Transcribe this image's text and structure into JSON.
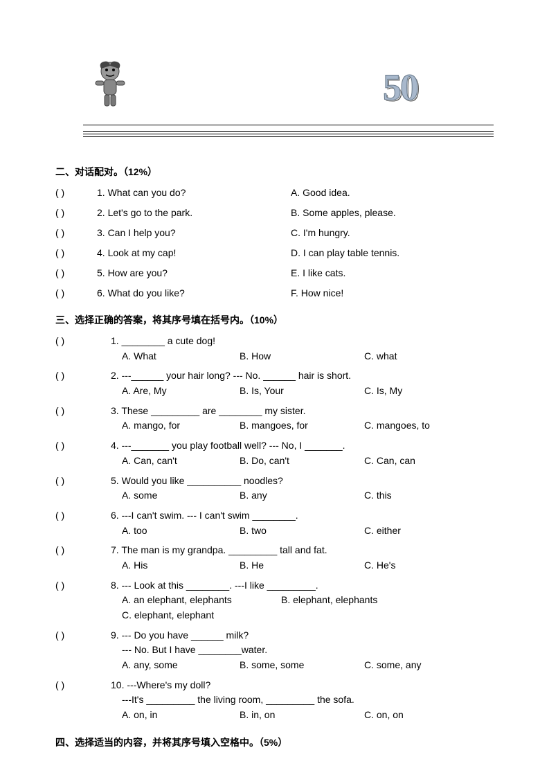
{
  "header": {
    "number": "50"
  },
  "section2": {
    "title": "二、对话配对。（12%）",
    "items": [
      {
        "paren": "(          )",
        "num": "1.",
        "left": "What can you do?",
        "letter": "A.",
        "right": "Good idea."
      },
      {
        "paren": "(          )",
        "num": "2.",
        "left": "Let's go to the park.",
        "letter": "B.",
        "right": "Some apples, please."
      },
      {
        "paren": "(          )",
        "num": "3.",
        "left": "Can I help you?",
        "letter": "C.",
        "right": "I'm hungry."
      },
      {
        "paren": "(          )",
        "num": "4.",
        "left": "Look at my cap!",
        "letter": "D.",
        "right": "I can play table tennis."
      },
      {
        "paren": "(          )",
        "num": "5.",
        "left": "How are you?",
        "letter": "E.",
        "right": "I like cats."
      },
      {
        "paren": "(          )",
        "num": "6.",
        "left": "What do you like?",
        "letter": "F.",
        "right": "How nice!"
      }
    ]
  },
  "section3": {
    "title": "三、选择正确的答案，将其序号填在括号内。（10%）",
    "questions": [
      {
        "paren": "(             )",
        "num": "1.",
        "stem": "________ a cute dog!",
        "opts": {
          "a": "A. What",
          "b": "B. How",
          "c": "C. what"
        }
      },
      {
        "paren": "(             )",
        "num": "2.",
        "stem": "---______ your hair long?         --- No. ______ hair is short.",
        "opts": {
          "a": "A. Are, My",
          "b": "B. Is, Your",
          "c": "C. Is, My"
        }
      },
      {
        "paren": "(             )",
        "num": "3.",
        "stem": "These _________ are ________ my sister.",
        "opts": {
          "a": "A. mango, for",
          "b": "B. mangoes, for",
          "c": "C. mangoes, to"
        }
      },
      {
        "paren": "(             )",
        "num": "4.",
        "stem": "---_______ you play football well?    --- No, I _______.",
        "opts": {
          "a": "A. Can, can't",
          "b": "B. Do, can't",
          "c": "C. Can, can"
        }
      },
      {
        "paren": "(             )",
        "num": "5.",
        "stem": "Would you like __________ noodles?",
        "opts": {
          "a": "A. some",
          "b": "B. any",
          "c": "C. this"
        }
      },
      {
        "paren": "(             )",
        "num": "6.",
        "stem": "---I can't swim.    --- I can't swim ________.",
        "opts": {
          "a": "A. too",
          "b": "B. two",
          "c": "C. either"
        }
      },
      {
        "paren": "(             )",
        "num": "7.",
        "stem": "The man is my grandpa.     _________ tall and fat.",
        "opts": {
          "a": "A. His",
          "b": "B. He",
          "c": "C. He's"
        }
      },
      {
        "paren": "(             )",
        "num": "8.",
        "stem": "--- Look at this ________.     ---I like _________.",
        "opts8": {
          "a": "A. an elephant, elephants",
          "b": "B. elephant, elephants",
          "c": "C. elephant, elephant"
        }
      },
      {
        "paren": "(             )",
        "num": "9.",
        "stem": "--- Do you have ______ milk?",
        "sub": "--- No. But I have ________water.",
        "opts": {
          "a": "A. any, some",
          "b": "B. some, some",
          "c": "C. some, any"
        }
      },
      {
        "paren": "(             )",
        "num": "10.",
        "stem": "---Where's my doll?",
        "sub": "---It's  _________ the living room, _________ the sofa.",
        "opts": {
          "a": "A. on, in",
          "b": "B. in, on",
          "c": "C. on, on"
        }
      }
    ]
  },
  "section4": {
    "title": "四、选择适当的内容，并将其序号填入空格中。（5%）"
  }
}
